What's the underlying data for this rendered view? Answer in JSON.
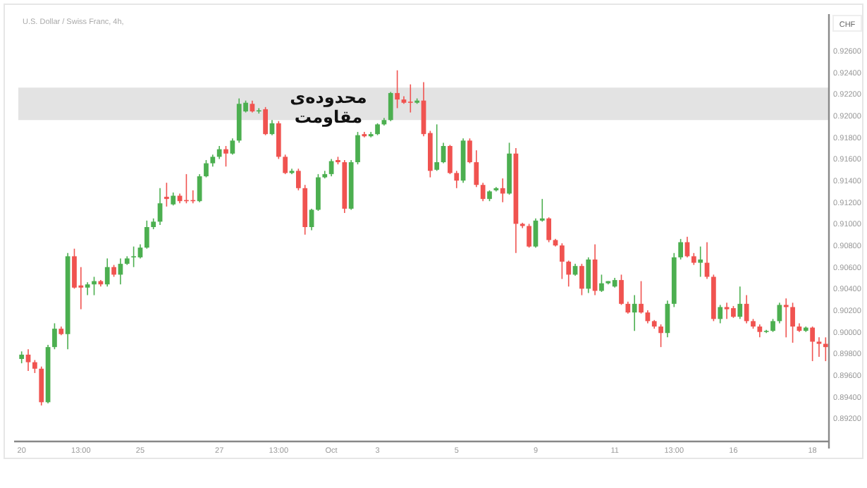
{
  "chart_data": {
    "type": "candlestick",
    "title": "U.S. Dollar / Swiss Franc, 4h,",
    "ylabel": "CHF",
    "categories": [
      "20",
      null,
      null,
      null,
      null,
      null,
      null,
      null,
      null,
      "13:00",
      null,
      null,
      null,
      null,
      null,
      null,
      null,
      null,
      "25",
      null,
      null,
      null,
      null,
      null,
      null,
      null,
      null,
      null,
      null,
      null,
      "27",
      null,
      null,
      null,
      null,
      null,
      null,
      null,
      null,
      "13:00",
      null,
      null,
      null,
      null,
      null,
      null,
      null,
      "Oct",
      null,
      null,
      null,
      null,
      null,
      null,
      "3",
      null,
      null,
      null,
      null,
      null,
      null,
      null,
      null,
      null,
      null,
      null,
      "5",
      null,
      null,
      null,
      null,
      null,
      null,
      null,
      null,
      null,
      null,
      null,
      "9",
      null,
      null,
      null,
      null,
      null,
      null,
      null,
      null,
      null,
      null,
      null,
      "11",
      null,
      null,
      null,
      null,
      null,
      null,
      null,
      null,
      "13:00",
      null,
      null,
      null,
      null,
      null,
      null,
      null,
      null,
      "16",
      null,
      null,
      null,
      null,
      null,
      null,
      null,
      null,
      null,
      null,
      null,
      "18",
      null,
      null
    ],
    "ohlc": [
      [
        0.8975,
        0.8982,
        0.8971,
        0.8979
      ],
      [
        0.8979,
        0.8984,
        0.8964,
        0.8972
      ],
      [
        0.8972,
        0.8974,
        0.8962,
        0.8966
      ],
      [
        0.8966,
        0.8968,
        0.8932,
        0.8935
      ],
      [
        0.8935,
        0.8988,
        0.8934,
        0.8986
      ],
      [
        0.8986,
        0.9008,
        0.8984,
        0.9003
      ],
      [
        0.9003,
        0.9005,
        0.8997,
        0.8998
      ],
      [
        0.8998,
        0.9073,
        0.8984,
        0.907
      ],
      [
        0.907,
        0.9077,
        0.904,
        0.9041
      ],
      [
        0.9043,
        0.906,
        0.9021,
        0.9041
      ],
      [
        0.9041,
        0.9046,
        0.9034,
        0.9044
      ],
      [
        0.9044,
        0.9051,
        0.9034,
        0.9047
      ],
      [
        0.9047,
        0.9048,
        0.9042,
        0.9044
      ],
      [
        0.9044,
        0.9068,
        0.9042,
        0.906
      ],
      [
        0.906,
        0.9062,
        0.9051,
        0.9053
      ],
      [
        0.9053,
        0.9068,
        0.9044,
        0.9063
      ],
      [
        0.9063,
        0.907,
        0.9062,
        0.9068
      ],
      [
        0.9069,
        0.9079,
        0.906,
        0.907
      ],
      [
        0.9069,
        0.9081,
        0.9068,
        0.9078
      ],
      [
        0.9078,
        0.9103,
        0.9077,
        0.9097
      ],
      [
        0.9097,
        0.9105,
        0.9095,
        0.9102
      ],
      [
        0.9102,
        0.9133,
        0.9099,
        0.9119
      ],
      [
        0.9125,
        0.9138,
        0.9116,
        0.9123
      ],
      [
        0.9118,
        0.9129,
        0.9117,
        0.9126
      ],
      [
        0.9126,
        0.9128,
        0.9119,
        0.9121
      ],
      [
        0.9122,
        0.9146,
        0.9119,
        0.9121
      ],
      [
        0.9122,
        0.9131,
        0.9119,
        0.9121
      ],
      [
        0.9121,
        0.9146,
        0.912,
        0.9144
      ],
      [
        0.9144,
        0.9159,
        0.9143,
        0.9156
      ],
      [
        0.9156,
        0.9164,
        0.9153,
        0.9162
      ],
      [
        0.9162,
        0.9172,
        0.916,
        0.9169
      ],
      [
        0.9169,
        0.9172,
        0.9153,
        0.9165
      ],
      [
        0.9165,
        0.9179,
        0.9164,
        0.9177
      ],
      [
        0.9177,
        0.9216,
        0.9175,
        0.9211
      ],
      [
        0.9204,
        0.9214,
        0.9203,
        0.9212
      ],
      [
        0.9211,
        0.9214,
        0.9203,
        0.9204
      ],
      [
        0.9204,
        0.9207,
        0.9202,
        0.9205
      ],
      [
        0.9206,
        0.9208,
        0.9182,
        0.9183
      ],
      [
        0.9183,
        0.9196,
        0.9182,
        0.9193
      ],
      [
        0.9193,
        0.9195,
        0.916,
        0.9162
      ],
      [
        0.9162,
        0.9164,
        0.9146,
        0.9147
      ],
      [
        0.9147,
        0.9151,
        0.9146,
        0.9149
      ],
      [
        0.9149,
        0.9151,
        0.9131,
        0.9133
      ],
      [
        0.9133,
        0.9136,
        0.909,
        0.9097
      ],
      [
        0.9097,
        0.9114,
        0.9094,
        0.9113
      ],
      [
        0.9113,
        0.9146,
        0.9112,
        0.9143
      ],
      [
        0.9143,
        0.9149,
        0.9142,
        0.9146
      ],
      [
        0.9146,
        0.916,
        0.9144,
        0.9158
      ],
      [
        0.9159,
        0.9162,
        0.9155,
        0.9157
      ],
      [
        0.9157,
        0.9159,
        0.911,
        0.9114
      ],
      [
        0.9114,
        0.9159,
        0.9113,
        0.9157
      ],
      [
        0.9157,
        0.9185,
        0.9155,
        0.9182
      ],
      [
        0.9183,
        0.9185,
        0.918,
        0.9181
      ],
      [
        0.9181,
        0.9185,
        0.918,
        0.9183
      ],
      [
        0.9183,
        0.9193,
        0.9182,
        0.9192
      ],
      [
        0.9192,
        0.9198,
        0.9191,
        0.9196
      ],
      [
        0.9196,
        0.9222,
        0.9195,
        0.9221
      ],
      [
        0.9221,
        0.9242,
        0.9207,
        0.9215
      ],
      [
        0.9215,
        0.9218,
        0.9211,
        0.9212
      ],
      [
        0.9213,
        0.9229,
        0.9203,
        0.9212
      ],
      [
        0.9212,
        0.9216,
        0.9211,
        0.9214
      ],
      [
        0.9214,
        0.9231,
        0.9181,
        0.9183
      ],
      [
        0.9184,
        0.9186,
        0.9143,
        0.9149
      ],
      [
        0.915,
        0.9192,
        0.9149,
        0.9157
      ],
      [
        0.9157,
        0.9175,
        0.9156,
        0.9172
      ],
      [
        0.9172,
        0.9173,
        0.9146,
        0.9147
      ],
      [
        0.9147,
        0.9149,
        0.9133,
        0.914
      ],
      [
        0.914,
        0.9179,
        0.9138,
        0.9177
      ],
      [
        0.9177,
        0.9179,
        0.9156,
        0.9157
      ],
      [
        0.9157,
        0.9168,
        0.9134,
        0.9136
      ],
      [
        0.9136,
        0.9138,
        0.9121,
        0.9123
      ],
      [
        0.9123,
        0.9131,
        0.9121,
        0.913
      ],
      [
        0.9131,
        0.9134,
        0.913,
        0.9133
      ],
      [
        0.9133,
        0.9142,
        0.912,
        0.9128
      ],
      [
        0.9128,
        0.9175,
        0.9127,
        0.9165
      ],
      [
        0.9165,
        0.917,
        0.9073,
        0.91
      ],
      [
        0.91,
        0.9101,
        0.9096,
        0.9098
      ],
      [
        0.9098,
        0.91,
        0.9078,
        0.9079
      ],
      [
        0.9079,
        0.9105,
        0.9078,
        0.9103
      ],
      [
        0.9103,
        0.9123,
        0.9102,
        0.9105
      ],
      [
        0.9105,
        0.9106,
        0.9083,
        0.9085
      ],
      [
        0.9085,
        0.9086,
        0.9079,
        0.908
      ],
      [
        0.908,
        0.9082,
        0.9049,
        0.9065
      ],
      [
        0.9065,
        0.9066,
        0.9042,
        0.9053
      ],
      [
        0.9053,
        0.9063,
        0.9052,
        0.9061
      ],
      [
        0.9061,
        0.9063,
        0.9034,
        0.904
      ],
      [
        0.904,
        0.9069,
        0.9036,
        0.9067
      ],
      [
        0.9067,
        0.9081,
        0.9034,
        0.9038
      ],
      [
        0.9038,
        0.9053,
        0.9037,
        0.9045
      ],
      [
        0.9045,
        0.9047,
        0.9044,
        0.9047
      ],
      [
        0.9042,
        0.905,
        0.9041,
        0.9048
      ],
      [
        0.9048,
        0.9053,
        0.9025,
        0.9026
      ],
      [
        0.9026,
        0.9028,
        0.9017,
        0.9018
      ],
      [
        0.9018,
        0.9034,
        0.9001,
        0.9026
      ],
      [
        0.9026,
        0.9047,
        0.9017,
        0.9018
      ],
      [
        0.9018,
        0.902,
        0.9008,
        0.901
      ],
      [
        0.901,
        0.9011,
        0.9003,
        0.9005
      ],
      [
        0.9005,
        0.9007,
        0.8986,
        0.8999
      ],
      [
        0.8999,
        0.9029,
        0.8995,
        0.9026
      ],
      [
        0.9026,
        0.9073,
        0.9023,
        0.9069
      ],
      [
        0.9069,
        0.9086,
        0.9067,
        0.9083
      ],
      [
        0.9083,
        0.9088,
        0.9069,
        0.907
      ],
      [
        0.907,
        0.9073,
        0.9062,
        0.9064
      ],
      [
        0.9064,
        0.9079,
        0.9051,
        0.9067
      ],
      [
        0.9064,
        0.9083,
        0.9049,
        0.9051
      ],
      [
        0.9051,
        0.9053,
        0.901,
        0.9012
      ],
      [
        0.9012,
        0.9025,
        0.9008,
        0.9023
      ],
      [
        0.9023,
        0.9027,
        0.9012,
        0.9021
      ],
      [
        0.9022,
        0.9024,
        0.9013,
        0.9014
      ],
      [
        0.9014,
        0.9042,
        0.9012,
        0.9026
      ],
      [
        0.9026,
        0.9034,
        0.9008,
        0.901
      ],
      [
        0.901,
        0.9012,
        0.9003,
        0.9005
      ],
      [
        0.9005,
        0.9007,
        0.8995,
        0.9
      ],
      [
        0.9,
        0.9002,
        0.8999,
        0.9001
      ],
      [
        0.9001,
        0.9012,
        0.9,
        0.901
      ],
      [
        0.901,
        0.9027,
        0.9008,
        0.9025
      ],
      [
        0.9025,
        0.9031,
        0.8995,
        0.9023
      ],
      [
        0.9023,
        0.9027,
        0.899,
        0.9005
      ],
      [
        0.9005,
        0.9008,
        0.9,
        0.9001
      ],
      [
        0.9001,
        0.9005,
        0.9,
        0.9004
      ],
      [
        0.9004,
        0.9005,
        0.8973,
        0.8991
      ],
      [
        0.8991,
        0.8995,
        0.8977,
        0.8989
      ],
      [
        0.8989,
        0.8995,
        0.8973,
        0.8986
      ]
    ],
    "colors": [
      "#4caf50",
      "#f05350",
      "#f05350",
      "#f05350",
      "#4caf50",
      "#4caf50",
      "#f05350",
      "#4caf50",
      "#f05350",
      "#f05350",
      "#4caf50",
      "#4caf50",
      "#f05350",
      "#4caf50",
      "#f05350",
      "#4caf50",
      "#4caf50",
      "#4caf50",
      "#4caf50",
      "#4caf50",
      "#4caf50",
      "#4caf50",
      "#f05350",
      "#4caf50",
      "#f05350",
      "#f05350",
      "#f05350",
      "#4caf50",
      "#4caf50",
      "#4caf50",
      "#4caf50",
      "#f05350",
      "#4caf50",
      "#4caf50",
      "#4caf50",
      "#f05350",
      "#4caf50",
      "#f05350",
      "#4caf50",
      "#f05350",
      "#f05350",
      "#4caf50",
      "#f05350",
      "#f05350",
      "#4caf50",
      "#4caf50",
      "#4caf50",
      "#4caf50",
      "#f05350",
      "#f05350",
      "#4caf50",
      "#4caf50",
      "#f05350",
      "#4caf50",
      "#4caf50",
      "#4caf50",
      "#4caf50",
      "#f05350",
      "#f05350",
      "#f05350",
      "#4caf50",
      "#f05350",
      "#f05350",
      "#4caf50",
      "#4caf50",
      "#f05350",
      "#f05350",
      "#4caf50",
      "#f05350",
      "#f05350",
      "#f05350",
      "#4caf50",
      "#4caf50",
      "#f05350",
      "#4caf50",
      "#f05350",
      "#f05350",
      "#f05350",
      "#4caf50",
      "#4caf50",
      "#f05350",
      "#f05350",
      "#f05350",
      "#f05350",
      "#4caf50",
      "#f05350",
      "#4caf50",
      "#f05350",
      "#4caf50",
      "#4caf50",
      "#4caf50",
      "#f05350",
      "#f05350",
      "#4caf50",
      "#f05350",
      "#f05350",
      "#f05350",
      "#f05350",
      "#4caf50",
      "#4caf50",
      "#4caf50",
      "#f05350",
      "#f05350",
      "#4caf50",
      "#f05350",
      "#f05350",
      "#4caf50",
      "#f05350",
      "#f05350",
      "#4caf50",
      "#f05350",
      "#f05350",
      "#f05350",
      "#4caf50",
      "#4caf50",
      "#4caf50",
      "#f05350",
      "#f05350",
      "#f05350",
      "#4caf50",
      "#f05350",
      "#f05350",
      "#f05350"
    ],
    "ylim": [
      0.89,
      0.9294
    ],
    "yticks": [
      {
        "value": 0.892,
        "label": "0.89200"
      },
      {
        "value": 0.894,
        "label": "0.89400"
      },
      {
        "value": 0.896,
        "label": "0.89600"
      },
      {
        "value": 0.898,
        "label": "0.89800"
      },
      {
        "value": 0.9,
        "label": "0.90000"
      },
      {
        "value": 0.902,
        "label": "0.90200"
      },
      {
        "value": 0.904,
        "label": "0.90400"
      },
      {
        "value": 0.906,
        "label": "0.90600"
      },
      {
        "value": 0.908,
        "label": "0.90800"
      },
      {
        "value": 0.91,
        "label": "0.91000"
      },
      {
        "value": 0.912,
        "label": "0.91200"
      },
      {
        "value": 0.914,
        "label": "0.91400"
      },
      {
        "value": 0.916,
        "label": "0.91600"
      },
      {
        "value": 0.918,
        "label": "0.91800"
      },
      {
        "value": 0.92,
        "label": "0.92000"
      },
      {
        "value": 0.922,
        "label": "0.92200"
      },
      {
        "value": 0.924,
        "label": "0.92400"
      },
      {
        "value": 0.926,
        "label": "0.92600"
      }
    ],
    "bands": [
      {
        "axis": "y",
        "from": 0.9196,
        "to": 0.9226,
        "label": "محدوده‌ی\nمقاومت",
        "color": "#dcdcdc"
      }
    ],
    "grid": false
  }
}
